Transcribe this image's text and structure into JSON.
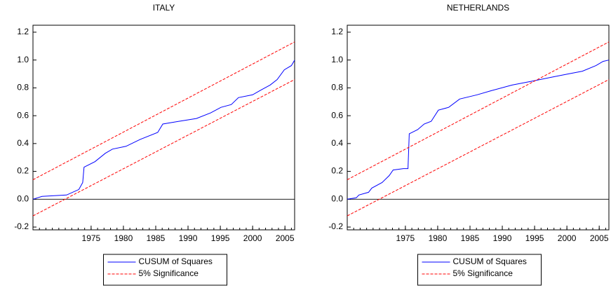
{
  "chart_data": [
    {
      "type": "line",
      "title": "ITALY",
      "xlim": [
        1966,
        2006.5
      ],
      "xticks": [
        1975,
        1980,
        1985,
        1990,
        1995,
        2000,
        2005
      ],
      "ylim": [
        -0.22,
        1.25
      ],
      "yticks": [
        -0.2,
        {
          "value": 0,
          "label": "0.0"
        },
        0.2,
        0.4,
        0.6,
        0.8,
        {
          "value": 1,
          "label": "1.0"
        },
        1.2
      ],
      "reference_line": 0,
      "legend": "bottom",
      "series": [
        {
          "name": "CUSUM of Squares",
          "color": "#0000ff",
          "x": [
            1966.0,
            1967.4,
            1971.2,
            1973.1,
            1973.7,
            1973.9,
            1975.6,
            1977.2,
            1978.3,
            1980.4,
            1982.6,
            1985.3,
            1986.1,
            1988.6,
            1991.3,
            1993.5,
            1995.1,
            1996.7,
            1997.8,
            2000.0,
            2001.1,
            2002.7,
            2003.8,
            2004.9,
            2006.0,
            2006.5
          ],
          "values": [
            0,
            0.02,
            0.03,
            0.07,
            0.12,
            0.23,
            0.27,
            0.33,
            0.36,
            0.38,
            0.43,
            0.48,
            0.54,
            0.56,
            0.58,
            0.62,
            0.66,
            0.68,
            0.73,
            0.75,
            0.78,
            0.82,
            0.86,
            0.93,
            0.96,
            1.0
          ]
        },
        {
          "name": "5% Significance",
          "color": "#ff0000",
          "dashed": true,
          "x": [
            1966,
            2006.5
          ],
          "upper": [
            0.14,
            1.13
          ],
          "lower": [
            -0.12,
            0.86
          ]
        }
      ]
    },
    {
      "type": "line",
      "title": "NETHERLANDS",
      "xlim": [
        1966,
        2006.5
      ],
      "xticks": [
        1975,
        1980,
        1985,
        1990,
        1995,
        2000,
        2005
      ],
      "ylim": [
        -0.22,
        1.25
      ],
      "yticks": [
        -0.2,
        {
          "value": 0,
          "label": "0.0"
        },
        0.2,
        0.4,
        0.6,
        0.8,
        {
          "value": 1,
          "label": "1.0"
        },
        1.2
      ],
      "reference_line": 0,
      "legend": "bottom",
      "series": [
        {
          "name": "CUSUM of Squares",
          "color": "#0000ff",
          "x": [
            1966.0,
            1967.4,
            1967.8,
            1969.3,
            1969.8,
            1971.4,
            1972.5,
            1973.1,
            1974.7,
            1975.4,
            1975.6,
            1976.9,
            1977.9,
            1979.0,
            1980.1,
            1981.7,
            1983.4,
            1986.1,
            1988.3,
            1991.5,
            1994.8,
            1998.0,
            2000.2,
            2002.4,
            2004.5,
            2005.6,
            2006.5
          ],
          "values": [
            0,
            0.01,
            0.03,
            0.05,
            0.08,
            0.12,
            0.17,
            0.21,
            0.22,
            0.22,
            0.47,
            0.5,
            0.54,
            0.56,
            0.64,
            0.66,
            0.72,
            0.75,
            0.78,
            0.82,
            0.85,
            0.88,
            0.9,
            0.92,
            0.96,
            0.99,
            1.0
          ]
        },
        {
          "name": "5% Significance",
          "color": "#ff0000",
          "dashed": true,
          "x": [
            1966,
            2006.5
          ],
          "upper": [
            0.14,
            1.13
          ],
          "lower": [
            -0.12,
            0.86
          ]
        }
      ]
    }
  ]
}
